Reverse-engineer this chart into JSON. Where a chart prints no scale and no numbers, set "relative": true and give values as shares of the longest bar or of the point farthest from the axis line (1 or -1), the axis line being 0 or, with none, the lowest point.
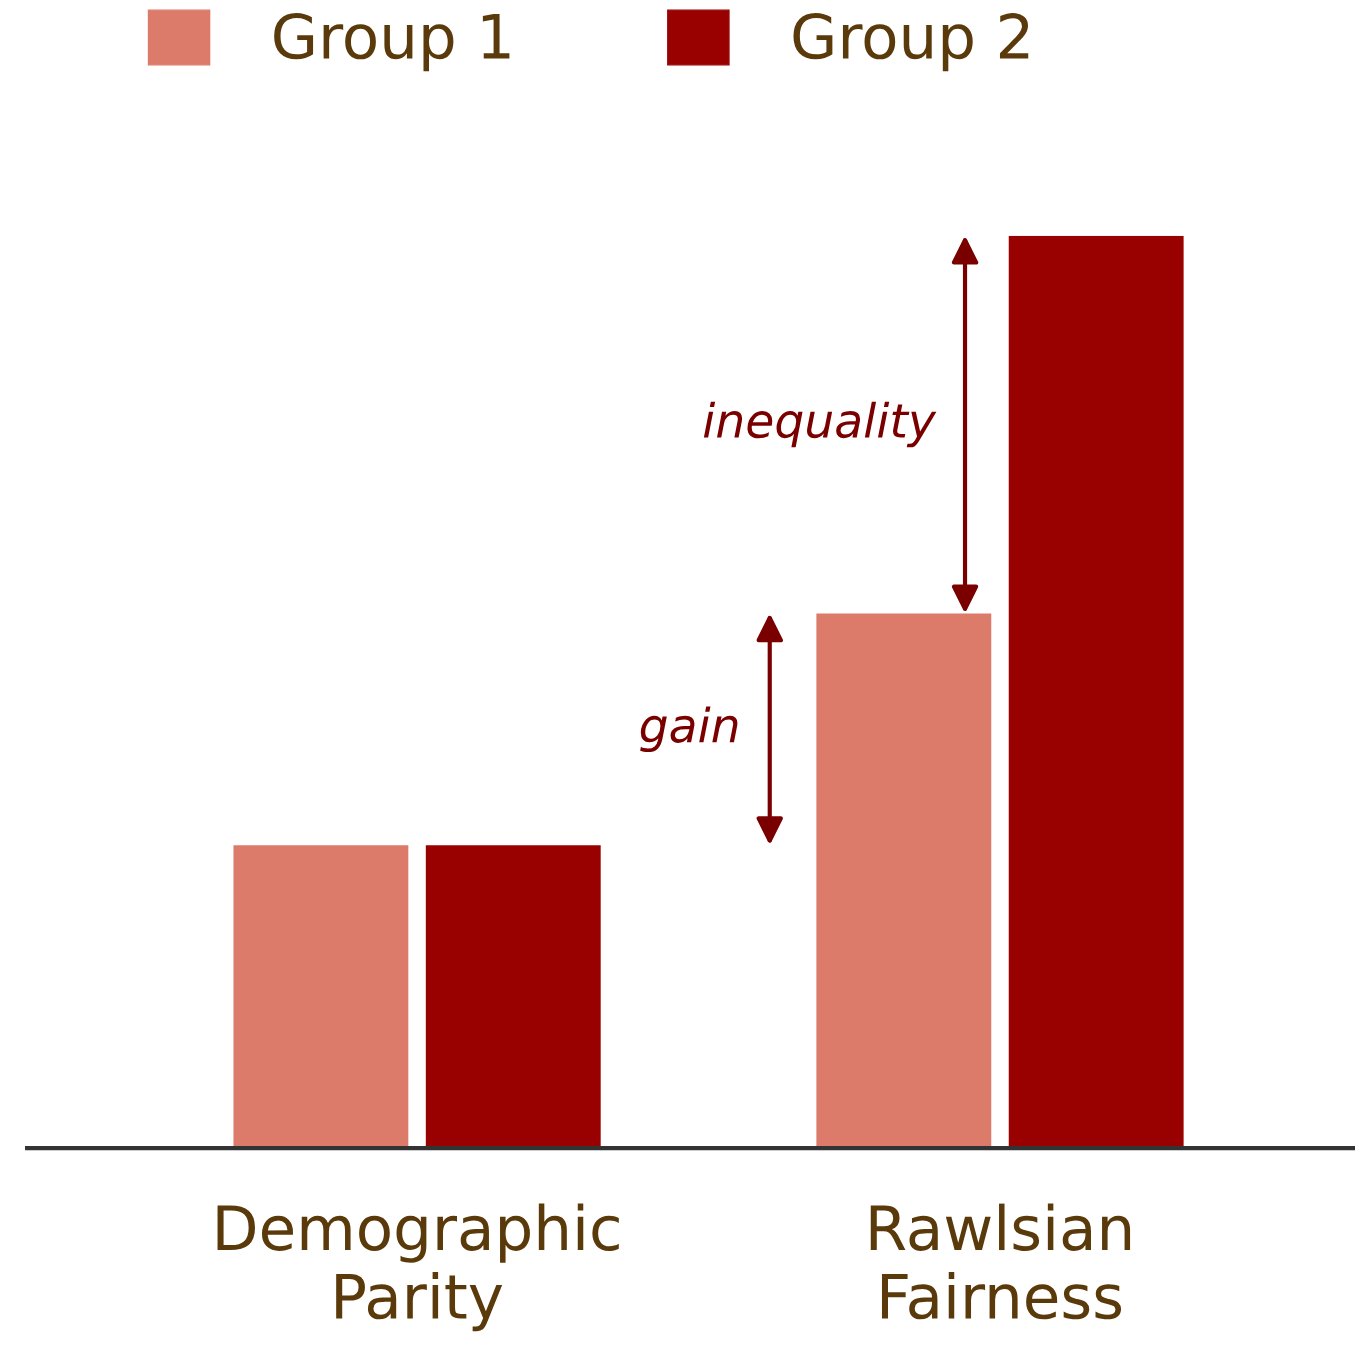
{
  "chart_data": {
    "type": "bar",
    "relative": true,
    "categories": [
      "Demographic\nParity",
      "Rawlsian\nFairness"
    ],
    "series": [
      {
        "name": "Group 1",
        "color": "#dc7b6a",
        "values": [
          0.332,
          0.586
        ]
      },
      {
        "name": "Group 2",
        "color": "#990000",
        "values": [
          0.332,
          1
        ]
      }
    ],
    "annotations": [
      "inequality",
      "gain"
    ],
    "legend": "top left",
    "grid": false
  }
}
